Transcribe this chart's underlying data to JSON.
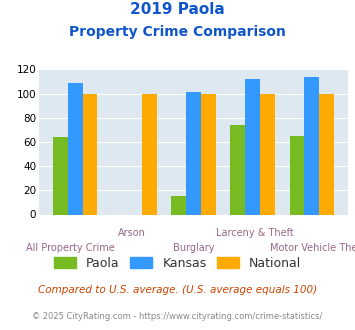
{
  "title_line1": "2019 Paola",
  "title_line2": "Property Crime Comparison",
  "categories": [
    "All Property Crime",
    "Arson",
    "Burglary",
    "Larceny & Theft",
    "Motor Vehicle Theft"
  ],
  "paola": [
    64,
    0,
    15,
    74,
    65
  ],
  "kansas": [
    109,
    0,
    101,
    112,
    114
  ],
  "national": [
    100,
    100,
    100,
    100,
    100
  ],
  "paola_color": "#77bb22",
  "kansas_color": "#3399ff",
  "national_color": "#ffaa00",
  "bg_color": "#dde8f0",
  "title_color": "#1155cc",
  "xlabel_color": "#996688",
  "ylim": [
    0,
    120
  ],
  "yticks": [
    0,
    20,
    40,
    60,
    80,
    100,
    120
  ],
  "footnote1": "Compared to U.S. average. (U.S. average equals 100)",
  "footnote2": "© 2025 CityRating.com - https://www.cityrating.com/crime-statistics/",
  "footnote1_color": "#cc4400",
  "footnote2_color": "#888888",
  "legend_labels": [
    "Paola",
    "Kansas",
    "National"
  ],
  "cat_labels_top": [
    "",
    "Arson",
    "",
    "Larceny & Theft",
    ""
  ],
  "cat_labels_bottom": [
    "All Property Crime",
    "",
    "Burglary",
    "",
    "Motor Vehicle Theft"
  ]
}
